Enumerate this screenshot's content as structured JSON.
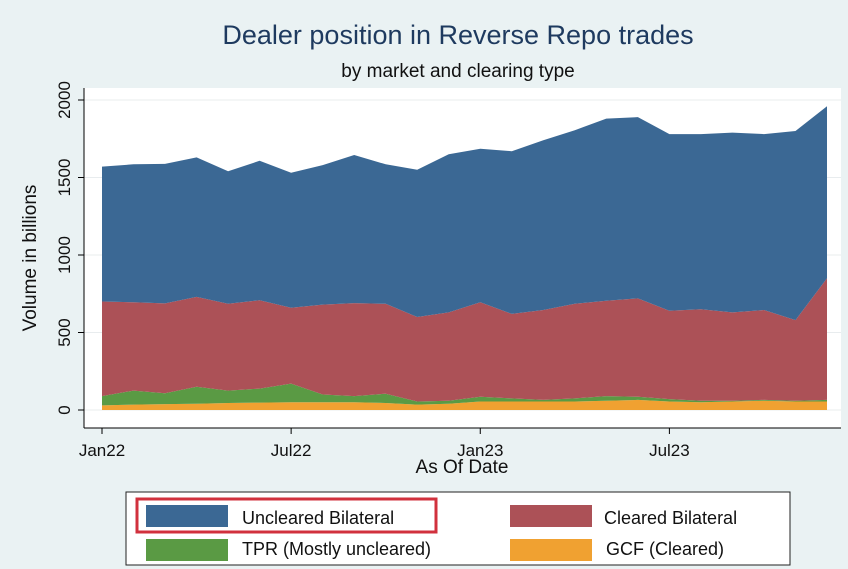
{
  "chart_data": {
    "type": "area",
    "stacked": true,
    "title": "Dealer position in Reverse Repo trades",
    "subtitle": "by market and clearing type",
    "xlabel": "As Of Date",
    "ylabel": "Volume in billions",
    "ylim": [
      0,
      2000
    ],
    "yticks": [
      0,
      500,
      1000,
      1500,
      2000
    ],
    "xticks": [
      {
        "label": "Jan22",
        "x": "2022-01"
      },
      {
        "label": "Jul22",
        "x": "2022-07"
      },
      {
        "label": "Jan23",
        "x": "2023-01"
      },
      {
        "label": "Jul23",
        "x": "2023-07"
      }
    ],
    "xlim": [
      "2022-01",
      "2023-12"
    ],
    "x": [
      "2022-01",
      "2022-02",
      "2022-03",
      "2022-04",
      "2022-05",
      "2022-06",
      "2022-07",
      "2022-08",
      "2022-09",
      "2022-10",
      "2022-11",
      "2022-12",
      "2023-01",
      "2023-02",
      "2023-03",
      "2023-04",
      "2023-05",
      "2023-06",
      "2023-07",
      "2023-08",
      "2023-09",
      "2023-10",
      "2023-11",
      "2023-12"
    ],
    "series": [
      {
        "name": "GCF (Cleared)",
        "color": "#f0a131",
        "values": [
          30,
          35,
          38,
          40,
          45,
          48,
          50,
          50,
          50,
          45,
          35,
          40,
          55,
          55,
          55,
          55,
          60,
          65,
          55,
          50,
          55,
          60,
          55,
          55
        ]
      },
      {
        "name": "TPR (Mostly uncleared)",
        "color": "#5a9a44",
        "values": [
          60,
          90,
          70,
          110,
          80,
          90,
          120,
          50,
          40,
          60,
          20,
          20,
          30,
          20,
          10,
          20,
          30,
          20,
          15,
          10,
          5,
          5,
          5,
          10
        ]
      },
      {
        "name": "Cleared  Bilateral",
        "color": "#ac5157",
        "values": [
          610,
          570,
          580,
          580,
          560,
          570,
          490,
          580,
          600,
          580,
          545,
          570,
          610,
          545,
          580,
          610,
          615,
          635,
          570,
          590,
          570,
          580,
          520,
          785
        ]
      },
      {
        "name": "Uncleared Bilateral",
        "color": "#3b6894",
        "values": [
          870,
          890,
          900,
          900,
          855,
          900,
          870,
          900,
          955,
          900,
          950,
          1020,
          990,
          1050,
          1095,
          1120,
          1175,
          1170,
          1140,
          1130,
          1160,
          1135,
          1220,
          1110
        ]
      }
    ],
    "legend": {
      "placement": "bottom",
      "order": [
        "Uncleared Bilateral",
        "Cleared  Bilateral",
        "TPR (Mostly uncleared)",
        "GCF (Cleared)"
      ],
      "highlighted": "Uncleared Bilateral",
      "highlight_color": "#d1313d"
    },
    "grid": true,
    "colors": {
      "background": "#eaf2f3",
      "plot_background": "#ffffff",
      "gridline": "#e8ecee"
    }
  }
}
